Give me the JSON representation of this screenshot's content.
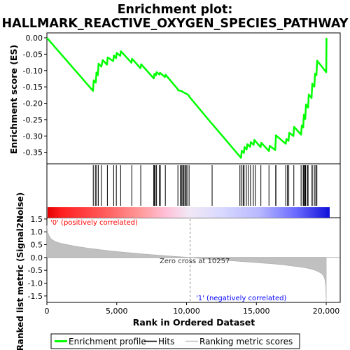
{
  "chart_data": {
    "type": "line",
    "title_line1": "Enrichment plot:",
    "title_line2": "HALLMARK_REACTIVE_OXYGEN_SPECIES_PATHWAY",
    "top_panel": {
      "ylabel": "Enrichment score (ES)",
      "ylim": [
        -0.385,
        0.015
      ],
      "yticks": [
        "0.00",
        "-0.05",
        "-0.10",
        "-0.15",
        "-0.20",
        "-0.25",
        "-0.30",
        "-0.35"
      ],
      "ytick_values": [
        0.0,
        -0.05,
        -0.1,
        -0.15,
        -0.2,
        -0.25,
        -0.3,
        -0.35
      ],
      "line_color": "#00ff00",
      "es_profile": {
        "x": [
          0,
          3300,
          3350,
          3500,
          3550,
          3650,
          3700,
          3900,
          4000,
          4300,
          4350,
          4750,
          4800,
          4950,
          5000,
          5250,
          5300,
          6050,
          6100,
          6700,
          6750,
          7650,
          7700,
          7800,
          7850,
          8050,
          8100,
          8450,
          8500,
          9350,
          9400,
          9700,
          9750,
          9950,
          10000,
          10150,
          10200,
          11800,
          11850,
          13900,
          13950,
          14100,
          14150,
          14300,
          14350,
          14550,
          14600,
          14800,
          14850,
          15300,
          15350,
          15900,
          15950,
          16350,
          16400,
          17100,
          17150,
          17300,
          17350,
          17650,
          17700,
          18200,
          18250,
          18350,
          18400,
          18500,
          18550,
          18700,
          18750,
          18950,
          19000,
          19150,
          19200,
          19300,
          19350,
          20000,
          20020
        ],
        "y": [
          0.0,
          -0.162,
          -0.13,
          -0.137,
          -0.106,
          -0.114,
          -0.079,
          -0.088,
          -0.068,
          -0.082,
          -0.06,
          -0.071,
          -0.054,
          -0.062,
          -0.046,
          -0.055,
          -0.041,
          -0.076,
          -0.064,
          -0.093,
          -0.081,
          -0.124,
          -0.11,
          -0.115,
          -0.105,
          -0.112,
          -0.107,
          -0.12,
          -0.113,
          -0.156,
          -0.16,
          -0.164,
          -0.166,
          -0.17,
          -0.171,
          -0.176,
          -0.18,
          -0.262,
          -0.264,
          -0.367,
          -0.345,
          -0.352,
          -0.334,
          -0.341,
          -0.325,
          -0.333,
          -0.319,
          -0.327,
          -0.312,
          -0.334,
          -0.321,
          -0.346,
          -0.33,
          -0.343,
          -0.298,
          -0.324,
          -0.309,
          -0.315,
          -0.29,
          -0.3,
          -0.272,
          -0.296,
          -0.268,
          -0.274,
          -0.235,
          -0.248,
          -0.204,
          -0.213,
          -0.173,
          -0.184,
          -0.14,
          -0.149,
          -0.109,
          -0.114,
          -0.07,
          -0.105,
          0.0
        ]
      }
    },
    "hits_panel": {
      "hit_positions": [
        3320,
        3470,
        3560,
        3680,
        3900,
        4330,
        4780,
        4970,
        5280,
        6080,
        6720,
        7650,
        7690,
        7760,
        7850,
        8060,
        8120,
        8480,
        9380,
        9550,
        9640,
        9720,
        9800,
        9880,
        9960,
        10030,
        10180,
        11830,
        13820,
        13930,
        14050,
        14120,
        14280,
        14420,
        14580,
        14780,
        14920,
        15320,
        15900,
        16380,
        16400,
        17100,
        17220,
        17320,
        17680,
        18200,
        18350,
        18400,
        18460,
        18520,
        18640,
        18700,
        18980,
        19000,
        19150,
        19250,
        19330
      ]
    },
    "rank_panel": {
      "ylabel": "Ranked list metric (Signal2Noise)",
      "ylim": [
        -1.75,
        1.55
      ],
      "yticks": [
        "1.5",
        "1.0",
        "0.5",
        "0.0",
        "-0.5",
        "-1.0",
        "-1.5"
      ],
      "ytick_values": [
        1.5,
        1.0,
        0.5,
        0.0,
        -0.5,
        -1.0,
        -1.5
      ],
      "metric_curve": {
        "rank": [
          0,
          50,
          150,
          300,
          600,
          1000,
          2000,
          3000,
          4000,
          5000,
          6000,
          7000,
          8000,
          9000,
          10000,
          10257,
          11000,
          12000,
          13000,
          14000,
          15000,
          16000,
          17000,
          18000,
          18500,
          19000,
          19300,
          19600,
          19800,
          19900,
          19970,
          20000
        ],
        "value": [
          1.25,
          1.0,
          0.85,
          0.72,
          0.62,
          0.55,
          0.44,
          0.36,
          0.29,
          0.23,
          0.18,
          0.13,
          0.09,
          0.05,
          0.01,
          0.0,
          -0.04,
          -0.08,
          -0.12,
          -0.16,
          -0.2,
          -0.24,
          -0.29,
          -0.36,
          -0.4,
          -0.46,
          -0.52,
          -0.6,
          -0.7,
          -0.85,
          -1.1,
          -1.75
        ]
      },
      "label_positive": "'0' (positively correlated)",
      "label_negative": "'1' (negatively correlated)",
      "zero_cross_label": "Zero cross at 10257",
      "zero_cross": 10257
    },
    "xlabel": "Rank in Ordered Dataset",
    "xlim": [
      0,
      21000
    ],
    "xticks": [
      "0",
      "5,000",
      "10,000",
      "15,000",
      "20,000"
    ],
    "xtick_values": [
      0,
      5000,
      10000,
      15000,
      20000
    ],
    "legend": {
      "placement": "bottom",
      "items": [
        "Enrichment profile",
        "Hits",
        "Ranking metric scores"
      ]
    },
    "colors": {
      "es_line": "#00ff00",
      "hits": "#000000",
      "metric_fill": "#c0c0c0",
      "positive": "#ff0000",
      "negative": "#0000ff",
      "label_pos": "#ff0000",
      "label_neg": "#0000ff"
    }
  }
}
